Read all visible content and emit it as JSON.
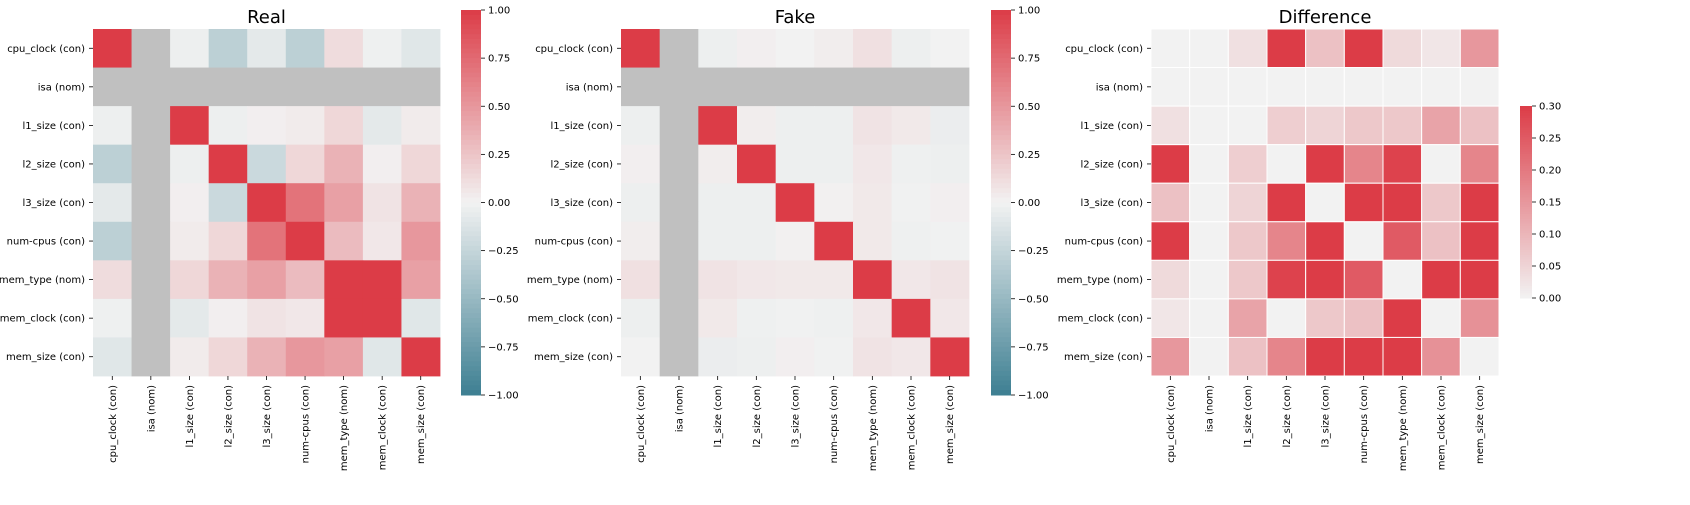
{
  "chart_data": [
    {
      "type": "heatmap",
      "title": "Real",
      "labels": [
        "cpu_clock (con)",
        "isa (nom)",
        "l1_size (con)",
        "l2_size (con)",
        "l3_size (con)",
        "num-cpus (con)",
        "mem_type (nom)",
        "mem_clock (con)",
        "mem_size (con)"
      ],
      "values": [
        [
          1.0,
          null,
          -0.03,
          -0.3,
          -0.08,
          -0.3,
          0.12,
          -0.02,
          -0.1
        ],
        [
          null,
          null,
          null,
          null,
          null,
          null,
          null,
          null,
          null
        ],
        [
          -0.03,
          null,
          1.0,
          -0.03,
          0.02,
          0.04,
          0.15,
          -0.08,
          0.04
        ],
        [
          -0.3,
          null,
          -0.03,
          1.0,
          -0.22,
          0.15,
          0.35,
          0.02,
          0.15
        ],
        [
          -0.08,
          null,
          0.02,
          -0.22,
          1.0,
          0.7,
          0.45,
          0.08,
          0.35
        ],
        [
          -0.3,
          null,
          0.04,
          0.15,
          0.7,
          1.0,
          0.3,
          0.06,
          0.5
        ],
        [
          0.12,
          null,
          0.15,
          0.35,
          0.45,
          0.3,
          1.0,
          1.0,
          0.45
        ],
        [
          -0.02,
          null,
          -0.08,
          0.02,
          0.08,
          0.06,
          1.0,
          1.0,
          -0.1
        ],
        [
          -0.1,
          null,
          0.04,
          0.15,
          0.35,
          0.5,
          0.45,
          -0.1,
          1.0
        ]
      ],
      "colorbar": {
        "min": -1,
        "max": 1,
        "ticks": [
          "1.00",
          "0.75",
          "0.50",
          "0.25",
          "0.00",
          "−0.25",
          "−0.50",
          "−0.75",
          "−1.00"
        ]
      }
    },
    {
      "type": "heatmap",
      "title": "Fake",
      "labels": [
        "cpu_clock (con)",
        "isa (nom)",
        "l1_size (con)",
        "l2_size (con)",
        "l3_size (con)",
        "num-cpus (con)",
        "mem_type (nom)",
        "mem_clock (con)",
        "mem_size (con)"
      ],
      "values": [
        [
          1.0,
          null,
          -0.03,
          0.02,
          0.0,
          0.03,
          0.1,
          -0.03,
          0.0
        ],
        [
          null,
          null,
          null,
          null,
          null,
          null,
          null,
          null,
          null
        ],
        [
          -0.03,
          null,
          1.0,
          0.03,
          -0.03,
          -0.03,
          0.08,
          0.05,
          -0.04
        ],
        [
          0.02,
          null,
          0.03,
          1.0,
          -0.03,
          -0.03,
          0.06,
          -0.02,
          -0.03
        ],
        [
          -0.03,
          null,
          -0.03,
          -0.03,
          1.0,
          0.01,
          0.05,
          -0.01,
          0.02
        ],
        [
          0.03,
          null,
          -0.03,
          -0.03,
          0.01,
          1.0,
          0.05,
          -0.02,
          -0.01
        ],
        [
          0.1,
          null,
          0.08,
          0.06,
          0.05,
          0.05,
          1.0,
          0.06,
          0.08
        ],
        [
          -0.03,
          null,
          0.05,
          -0.02,
          -0.01,
          -0.02,
          0.06,
          1.0,
          0.06
        ],
        [
          0.0,
          null,
          -0.04,
          -0.03,
          0.02,
          -0.01,
          0.08,
          0.06,
          1.0
        ]
      ],
      "colorbar": {
        "min": -1,
        "max": 1,
        "ticks": [
          "1.00",
          "0.75",
          "0.50",
          "0.25",
          "0.00",
          "−0.25",
          "−0.50",
          "−0.75",
          "−1.00"
        ]
      }
    },
    {
      "type": "heatmap",
      "title": "Difference",
      "labels": [
        "cpu_clock (con)",
        "isa (nom)",
        "l1_size (con)",
        "l2_size (con)",
        "l3_size (con)",
        "num-cpus (con)",
        "mem_type (nom)",
        "mem_clock (con)",
        "mem_size (con)"
      ],
      "values": [
        [
          0.0,
          0.0,
          0.03,
          0.32,
          0.08,
          0.33,
          0.04,
          0.02,
          0.15
        ],
        [
          0.0,
          0.0,
          0.0,
          0.0,
          0.0,
          0.0,
          0.0,
          0.0,
          0.0
        ],
        [
          0.03,
          0.0,
          0.0,
          0.06,
          0.05,
          0.07,
          0.07,
          0.13,
          0.08
        ],
        [
          0.32,
          0.0,
          0.06,
          0.0,
          0.3,
          0.18,
          0.29,
          0.0,
          0.18
        ],
        [
          0.08,
          0.0,
          0.05,
          0.3,
          0.0,
          0.69,
          0.4,
          0.07,
          0.33
        ],
        [
          0.33,
          0.0,
          0.07,
          0.18,
          0.69,
          0.0,
          0.25,
          0.08,
          0.51
        ],
        [
          0.04,
          0.0,
          0.07,
          0.29,
          0.4,
          0.25,
          0.0,
          0.94,
          0.37
        ],
        [
          0.02,
          0.0,
          0.13,
          0.0,
          0.07,
          0.08,
          0.94,
          0.0,
          0.16
        ],
        [
          0.15,
          0.0,
          0.08,
          0.18,
          0.33,
          0.51,
          0.37,
          0.16,
          0.0
        ]
      ],
      "colorbar": {
        "min": 0,
        "max": 0.3,
        "ticks": [
          "0.30",
          "0.25",
          "0.20",
          "0.15",
          "0.10",
          "0.05",
          "0.00"
        ]
      }
    }
  ],
  "colors": {
    "negative": "#3d7f92",
    "neutral": "#f2f2f2",
    "positive": "#dc3c47",
    "missing": "#c0c0c0"
  }
}
